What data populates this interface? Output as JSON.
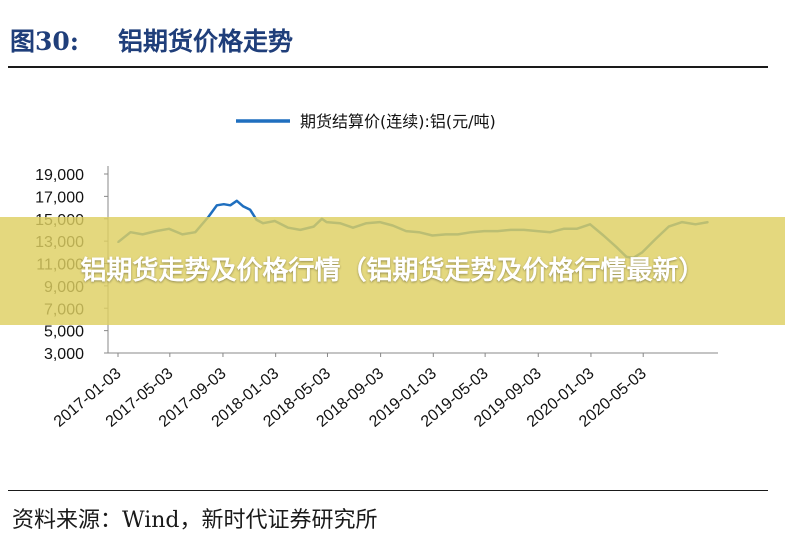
{
  "header": {
    "figure_number": "图30:",
    "figure_title": "铝期货价格走势"
  },
  "source": "资料来源：Wind，新时代证券研究所",
  "banner": {
    "text": "铝期货走势及价格行情（铝期货走势及价格行情最新）"
  },
  "colors": {
    "series": "#1f6fbf",
    "header": "#1f3e7a",
    "banner": "#dccf60",
    "axis": "#888888"
  },
  "chart_data": {
    "type": "line",
    "title": "",
    "xlabel": "",
    "ylabel": "",
    "ylim": [
      3000,
      19000
    ],
    "y_ticks": [
      "3,000",
      "5,000",
      "7,000",
      "9,000",
      "11,000",
      "13,000",
      "15,000",
      "17,000",
      "19,000"
    ],
    "x_ticks": [
      "2017-01-03",
      "2017-05-03",
      "2017-09-03",
      "2018-01-03",
      "2018-05-03",
      "2018-09-03",
      "2019-01-03",
      "2019-05-03",
      "2019-09-03",
      "2020-01-03",
      "2020-05-03"
    ],
    "x_range": [
      "2017-01-03",
      "2020-09-30"
    ],
    "legend_position": "top-center",
    "grid": false,
    "series": [
      {
        "name": "期货结算价(连续):铝(元/吨)",
        "x": [
          "2017-01-03",
          "2017-02-01",
          "2017-03-01",
          "2017-04-01",
          "2017-05-01",
          "2017-06-01",
          "2017-07-01",
          "2017-08-01",
          "2017-08-20",
          "2017-09-05",
          "2017-09-20",
          "2017-10-05",
          "2017-10-20",
          "2017-11-05",
          "2017-11-20",
          "2017-12-05",
          "2018-01-01",
          "2018-02-01",
          "2018-03-01",
          "2018-04-01",
          "2018-04-20",
          "2018-05-01",
          "2018-06-01",
          "2018-07-01",
          "2018-08-01",
          "2018-09-01",
          "2018-10-01",
          "2018-11-01",
          "2018-12-01",
          "2019-01-01",
          "2019-02-01",
          "2019-03-01",
          "2019-04-01",
          "2019-05-01",
          "2019-06-01",
          "2019-07-01",
          "2019-08-01",
          "2019-09-01",
          "2019-10-01",
          "2019-11-01",
          "2019-12-01",
          "2020-01-01",
          "2020-02-01",
          "2020-03-01",
          "2020-03-25",
          "2020-04-10",
          "2020-05-01",
          "2020-06-01",
          "2020-07-01",
          "2020-08-01",
          "2020-09-01",
          "2020-09-30"
        ],
        "y": [
          12900,
          13800,
          13600,
          13900,
          14100,
          13600,
          13800,
          15200,
          16200,
          16300,
          16200,
          16600,
          16100,
          15800,
          14900,
          14600,
          14800,
          14200,
          14000,
          14300,
          15000,
          14700,
          14600,
          14200,
          14600,
          14700,
          14400,
          13900,
          13800,
          13500,
          13600,
          13600,
          13800,
          13900,
          13900,
          14000,
          14000,
          13900,
          13800,
          14100,
          14100,
          14500,
          13500,
          12500,
          11600,
          11500,
          12000,
          13200,
          14300,
          14700,
          14500,
          14700
        ]
      }
    ]
  }
}
